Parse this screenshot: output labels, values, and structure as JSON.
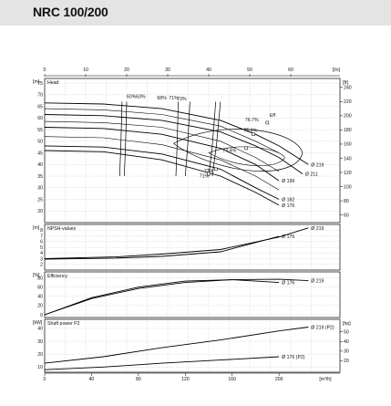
{
  "title": "NRC 100/200",
  "chart_data": {
    "type": "line",
    "top_axis": {
      "unit": "[l/s]",
      "ticks": [
        "0",
        "10",
        "20",
        "30",
        "40",
        "50",
        "60"
      ]
    },
    "bottom_axis": {
      "unit": "[m³/h]",
      "ticks": [
        "0",
        "40",
        "80",
        "120",
        "160",
        "200"
      ]
    },
    "panels": [
      {
        "id": "head",
        "title": "Head",
        "left_unit": "[m]",
        "left_ticks": [
          "75",
          "70",
          "65",
          "60",
          "55",
          "50",
          "45",
          "40",
          "35",
          "30",
          "25",
          "20"
        ],
        "right_unit": "[ft]",
        "right_ticks": [
          "240",
          "220",
          "200",
          "180",
          "160",
          "140",
          "120",
          "100",
          "80",
          "60"
        ],
        "series": [
          {
            "name": "Ø 219",
            "x": [
              0,
              50,
              100,
              150,
              180,
              200,
              225
            ],
            "y": [
              66.5,
              66,
              64,
              59,
              53,
              48,
              40
            ]
          },
          {
            "name": "Ø 211",
            "x": [
              0,
              50,
              100,
              150,
              180,
              200,
              220
            ],
            "y": [
              61.5,
              61,
              59,
              54,
              48,
              43,
              36
            ]
          },
          {
            "name": "Ø 199",
            "x": [
              0,
              50,
              100,
              150,
              180,
              200
            ],
            "y": [
              56,
              55.5,
              53,
              47,
              40,
              33
            ]
          },
          {
            "name": "Ø 182",
            "x": [
              0,
              50,
              100,
              150,
              180,
              200
            ],
            "y": [
              48,
              47.5,
              44.5,
              38,
              30,
              25
            ]
          },
          {
            "name": "Ø 176",
            "x": [
              0,
              50,
              100,
              150,
              180,
              200
            ],
            "y": [
              46,
              45.5,
              42,
              35,
              28,
              22.5
            ]
          }
        ],
        "efficiency_labels": [
          "60%",
          "63%",
          "68%",
          "71%",
          "73%",
          "76.7%",
          "75.9%",
          "74.4%",
          "73%",
          "71%",
          "Eff"
        ]
      },
      {
        "id": "npsh",
        "title": "NPSH-values",
        "left_unit": "[m]",
        "left_ticks": [
          "8",
          "7",
          "6",
          "5",
          "4",
          "3",
          "2"
        ],
        "series": [
          {
            "name": "Ø 219",
            "x": [
              0,
              60,
              100,
              150,
              200,
              225
            ],
            "y": [
              3,
              3.3,
              3.8,
              4.6,
              6.8,
              8.4
            ]
          },
          {
            "name": "Ø 176",
            "x": [
              0,
              60,
              100,
              150,
              200
            ],
            "y": [
              2.9,
              3.1,
              3.4,
              4.2,
              6.9
            ]
          }
        ]
      },
      {
        "id": "efficiency",
        "title": "Efficiency",
        "left_unit": "[%]",
        "left_ticks": [
          "80",
          "60",
          "40",
          "20",
          "0"
        ],
        "series": [
          {
            "name": "Ø 219",
            "x": [
              0,
              40,
              80,
              120,
              160,
              200,
              225
            ],
            "y": [
              0,
              35,
              57,
              70,
              76,
              77,
              74
            ]
          },
          {
            "name": "Ø 176",
            "x": [
              0,
              40,
              80,
              120,
              160,
              200
            ],
            "y": [
              0,
              37,
              60,
              73,
              76,
              70
            ]
          }
        ]
      },
      {
        "id": "power",
        "title": "Shaft power P2",
        "left_unit": "[kW]",
        "left_ticks": [
          "40",
          "30",
          "20",
          "10"
        ],
        "right_unit": "[hp]",
        "right_ticks": [
          "50",
          "40",
          "30",
          "20"
        ],
        "series": [
          {
            "name": "Ø 219 (P2)",
            "x": [
              0,
              50,
              100,
              150,
              200,
              225
            ],
            "y": [
              13,
              18,
              25,
              31,
              38,
              41
            ]
          },
          {
            "name": "Ø 176 (P2)",
            "x": [
              0,
              50,
              100,
              150,
              200
            ],
            "y": [
              8,
              10,
              13,
              15.5,
              18
            ]
          }
        ]
      }
    ]
  }
}
